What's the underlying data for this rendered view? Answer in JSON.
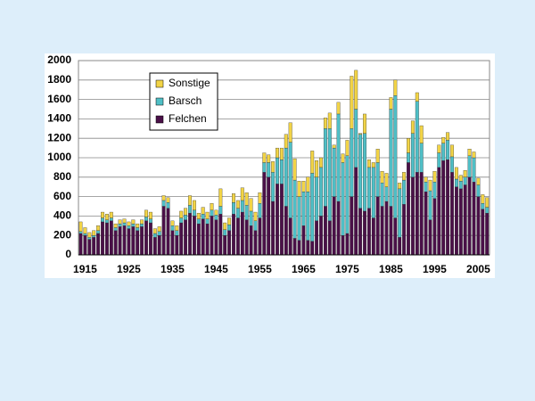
{
  "chart_data": {
    "type": "stacked_bar",
    "categories": [
      null,
      "1915",
      null,
      null,
      null,
      null,
      null,
      null,
      null,
      null,
      null,
      "1925",
      null,
      null,
      null,
      null,
      null,
      null,
      null,
      null,
      null,
      "1935",
      null,
      null,
      null,
      null,
      null,
      null,
      null,
      null,
      null,
      "1945",
      null,
      null,
      null,
      null,
      null,
      null,
      null,
      null,
      null,
      "1955",
      null,
      null,
      null,
      null,
      null,
      null,
      null,
      null,
      null,
      "1965",
      null,
      null,
      null,
      null,
      null,
      null,
      null,
      null,
      null,
      "1975",
      null,
      null,
      null,
      null,
      null,
      null,
      null,
      null,
      null,
      "1985",
      null,
      null,
      null,
      null,
      null,
      null,
      null,
      null,
      null,
      "1995",
      null,
      null,
      null,
      null,
      null,
      null,
      null,
      null,
      null,
      "2005",
      null,
      null
    ],
    "series": [
      {
        "name": "Felchen",
        "color": "#4a1048",
        "values": [
          220,
          200,
          160,
          180,
          220,
          340,
          330,
          350,
          250,
          290,
          300,
          270,
          290,
          250,
          290,
          350,
          330,
          180,
          200,
          500,
          480,
          250,
          200,
          330,
          360,
          430,
          400,
          320,
          370,
          320,
          400,
          360,
          420,
          200,
          250,
          420,
          380,
          440,
          360,
          300,
          250,
          380,
          850,
          800,
          550,
          730,
          730,
          500,
          380,
          170,
          150,
          300,
          150,
          140,
          350,
          400,
          500,
          350,
          600,
          550,
          200,
          220,
          600,
          900,
          480,
          450,
          480,
          380,
          600,
          500,
          550,
          500,
          380,
          180,
          520,
          950,
          800,
          850,
          850,
          650,
          360,
          580,
          900,
          970,
          980,
          850,
          700,
          680,
          720,
          800,
          750,
          600,
          470,
          430
        ]
      },
      {
        "name": "Barsch",
        "color": "#4fbfc6",
        "values": [
          20,
          20,
          20,
          20,
          30,
          40,
          30,
          30,
          30,
          30,
          30,
          30,
          30,
          30,
          30,
          40,
          40,
          40,
          40,
          60,
          60,
          50,
          50,
          50,
          50,
          80,
          60,
          50,
          50,
          50,
          60,
          50,
          80,
          60,
          60,
          120,
          100,
          120,
          150,
          150,
          100,
          150,
          100,
          150,
          300,
          270,
          250,
          600,
          780,
          600,
          450,
          350,
          500,
          700,
          450,
          500,
          800,
          950,
          500,
          900,
          750,
          800,
          700,
          600,
          760,
          800,
          420,
          520,
          350,
          240,
          150,
          1000,
          1260,
          500,
          250,
          100,
          450,
          730,
          300,
          100,
          300,
          170,
          150,
          180,
          200,
          160,
          80,
          80,
          80,
          220,
          250,
          120,
          60,
          60
        ]
      },
      {
        "name": "Sonstige",
        "color": "#f2d446",
        "values": [
          100,
          60,
          50,
          50,
          50,
          60,
          60,
          60,
          40,
          40,
          40,
          40,
          40,
          40,
          40,
          70,
          70,
          50,
          50,
          50,
          50,
          50,
          50,
          70,
          70,
          100,
          100,
          60,
          70,
          70,
          70,
          50,
          180,
          70,
          70,
          90,
          80,
          130,
          130,
          130,
          90,
          110,
          100,
          80,
          110,
          100,
          120,
          140,
          200,
          220,
          160,
          110,
          150,
          230,
          170,
          100,
          110,
          160,
          30,
          120,
          90,
          160,
          540,
          400,
          10,
          200,
          80,
          50,
          140,
          120,
          140,
          120,
          160,
          60,
          80,
          150,
          130,
          90,
          180,
          50,
          110,
          110,
          80,
          60,
          80,
          120,
          120,
          60,
          70,
          70,
          60,
          70,
          90,
          100
        ]
      }
    ],
    "ylim": [
      0,
      2000
    ],
    "yticks": [
      0,
      200,
      400,
      600,
      800,
      1000,
      1200,
      1400,
      1600,
      1800,
      2000
    ],
    "grid": true
  }
}
